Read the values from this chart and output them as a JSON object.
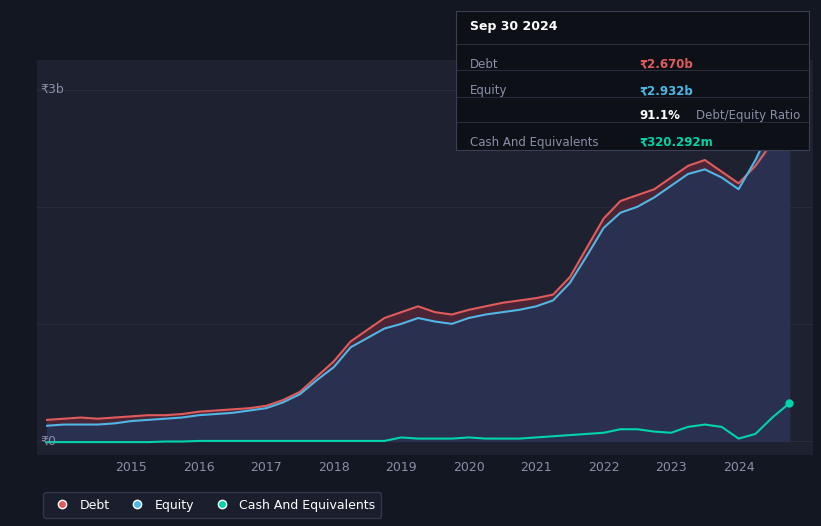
{
  "background_color": "#131722",
  "plot_bg_color": "#1e2130",
  "grid_color": "#2a2e3e",
  "title_box": {
    "date": "Sep 30 2024",
    "debt_label": "Debt",
    "debt_value": "₹2.670b",
    "debt_color": "#e05c5c",
    "equity_label": "Equity",
    "equity_value": "₹2.932b",
    "equity_color": "#4db8e8",
    "ratio_bold": "91.1%",
    "ratio_text": "Debt/Equity Ratio",
    "cash_label": "Cash And Equivalents",
    "cash_value": "₹320.292m",
    "cash_color": "#00d4aa"
  },
  "y_label_3b": "₹3b",
  "y_label_0": "₹0",
  "x_ticks": [
    "2015",
    "2016",
    "2017",
    "2018",
    "2019",
    "2020",
    "2021",
    "2022",
    "2023",
    "2024"
  ],
  "x_tick_positions": [
    2015,
    2016,
    2017,
    2018,
    2019,
    2020,
    2021,
    2022,
    2023,
    2024
  ],
  "debt_color": "#e05c5c",
  "equity_color": "#4db8e8",
  "cash_color": "#00d4aa",
  "equity_fill_color": "#2a3050",
  "debt_fill_color": "#4a2535",
  "legend_bg": "#1e2130",
  "legend_border": "#3a3f55",
  "debt_data": {
    "x": [
      2013.75,
      2014.0,
      2014.25,
      2014.5,
      2014.75,
      2015.0,
      2015.25,
      2015.5,
      2015.75,
      2016.0,
      2016.25,
      2016.5,
      2016.75,
      2017.0,
      2017.25,
      2017.5,
      2017.75,
      2018.0,
      2018.25,
      2018.5,
      2018.75,
      2019.0,
      2019.25,
      2019.5,
      2019.75,
      2020.0,
      2020.25,
      2020.5,
      2020.75,
      2021.0,
      2021.25,
      2021.5,
      2021.75,
      2022.0,
      2022.25,
      2022.5,
      2022.75,
      2023.0,
      2023.25,
      2023.5,
      2023.75,
      2024.0,
      2024.25,
      2024.5,
      2024.75
    ],
    "y": [
      0.18,
      0.19,
      0.2,
      0.19,
      0.2,
      0.21,
      0.22,
      0.22,
      0.23,
      0.25,
      0.26,
      0.27,
      0.28,
      0.3,
      0.35,
      0.42,
      0.55,
      0.68,
      0.85,
      0.95,
      1.05,
      1.1,
      1.15,
      1.1,
      1.08,
      1.12,
      1.15,
      1.18,
      1.2,
      1.22,
      1.25,
      1.4,
      1.65,
      1.9,
      2.05,
      2.1,
      2.15,
      2.25,
      2.35,
      2.4,
      2.3,
      2.2,
      2.35,
      2.55,
      2.67
    ]
  },
  "equity_data": {
    "x": [
      2013.75,
      2014.0,
      2014.25,
      2014.5,
      2014.75,
      2015.0,
      2015.25,
      2015.5,
      2015.75,
      2016.0,
      2016.25,
      2016.5,
      2016.75,
      2017.0,
      2017.25,
      2017.5,
      2017.75,
      2018.0,
      2018.25,
      2018.5,
      2018.75,
      2019.0,
      2019.25,
      2019.5,
      2019.75,
      2020.0,
      2020.25,
      2020.5,
      2020.75,
      2021.0,
      2021.25,
      2021.5,
      2021.75,
      2022.0,
      2022.25,
      2022.5,
      2022.75,
      2023.0,
      2023.25,
      2023.5,
      2023.75,
      2024.0,
      2024.25,
      2024.5,
      2024.75
    ],
    "y": [
      0.13,
      0.14,
      0.14,
      0.14,
      0.15,
      0.17,
      0.18,
      0.19,
      0.2,
      0.22,
      0.23,
      0.24,
      0.26,
      0.28,
      0.33,
      0.4,
      0.52,
      0.63,
      0.8,
      0.88,
      0.96,
      1.0,
      1.05,
      1.02,
      1.0,
      1.05,
      1.08,
      1.1,
      1.12,
      1.15,
      1.2,
      1.35,
      1.58,
      1.82,
      1.95,
      2.0,
      2.08,
      2.18,
      2.28,
      2.32,
      2.25,
      2.15,
      2.4,
      2.7,
      2.932
    ]
  },
  "cash_data": {
    "x": [
      2013.75,
      2014.0,
      2014.25,
      2014.5,
      2014.75,
      2015.0,
      2015.25,
      2015.5,
      2015.75,
      2016.0,
      2016.25,
      2016.5,
      2016.75,
      2017.0,
      2017.25,
      2017.5,
      2017.75,
      2018.0,
      2018.25,
      2018.5,
      2018.75,
      2019.0,
      2019.25,
      2019.5,
      2019.75,
      2020.0,
      2020.25,
      2020.5,
      2020.75,
      2021.0,
      2021.25,
      2021.5,
      2021.75,
      2022.0,
      2022.25,
      2022.5,
      2022.75,
      2023.0,
      2023.25,
      2023.5,
      2023.75,
      2024.0,
      2024.25,
      2024.5,
      2024.75
    ],
    "y": [
      -0.01,
      -0.01,
      -0.01,
      -0.01,
      -0.01,
      -0.01,
      -0.01,
      -0.005,
      -0.005,
      0.0,
      0.0,
      0.0,
      0.0,
      0.0,
      0.0,
      0.0,
      0.0,
      0.0,
      0.0,
      0.0,
      0.0,
      0.03,
      0.02,
      0.02,
      0.02,
      0.03,
      0.02,
      0.02,
      0.02,
      0.03,
      0.04,
      0.05,
      0.06,
      0.07,
      0.1,
      0.1,
      0.08,
      0.07,
      0.12,
      0.14,
      0.12,
      0.02,
      0.06,
      0.2,
      0.32
    ]
  },
  "ylim": [
    -0.12,
    3.25
  ],
  "xlim": [
    2013.6,
    2025.1
  ]
}
